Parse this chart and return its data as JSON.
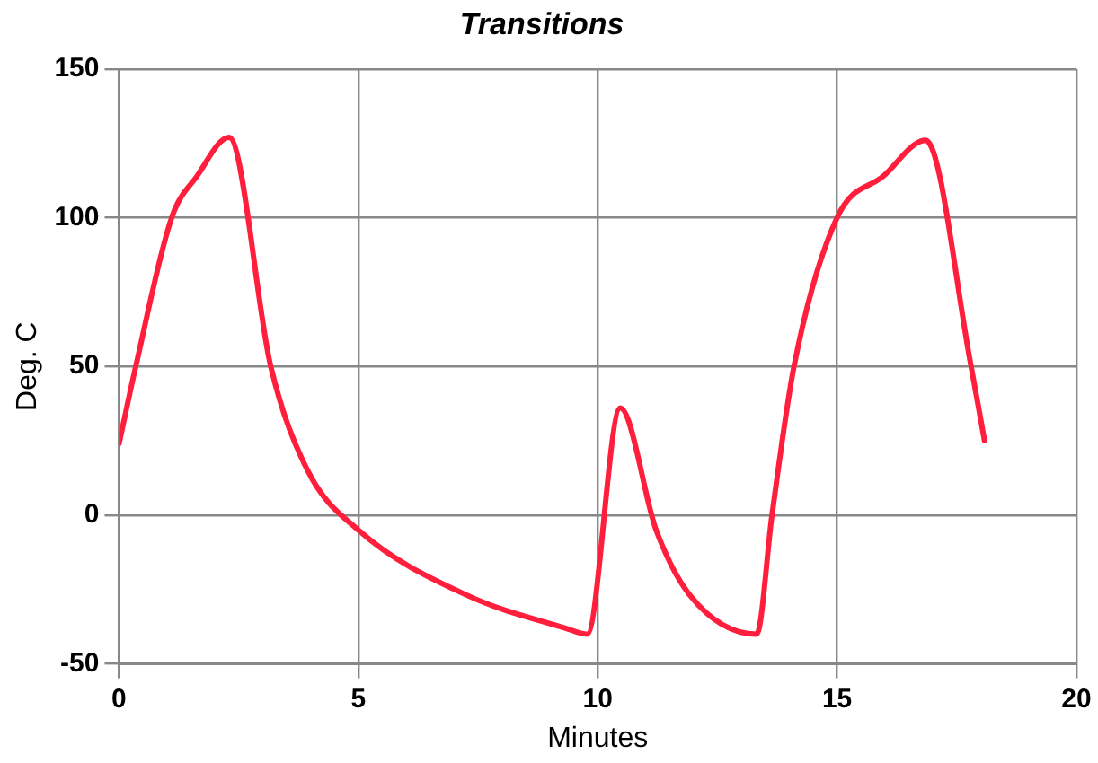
{
  "chart_data": {
    "type": "line",
    "title": "Transitions",
    "xlabel": "Minutes",
    "ylabel": "Deg. C",
    "xlim": [
      0,
      20
    ],
    "xticks": [
      0,
      5,
      10,
      15,
      20
    ],
    "ylim": [
      -50,
      150
    ],
    "yticks": [
      -50,
      0,
      50,
      100,
      150
    ],
    "grid": true,
    "legend": false,
    "marker": "none",
    "line_style": "solid",
    "series": [
      {
        "color": "#ff1f3d",
        "x": [
          0,
          0.35,
          1.1,
          1.63,
          2.3,
          3.17,
          3.94,
          5,
          7.28,
          9.33,
          9.78,
          10.47,
          11.22,
          11.93,
          13.32,
          13.64,
          14.1,
          15,
          15.97,
          16.85,
          17.8,
          18.08
        ],
        "values": [
          24,
          50,
          100,
          114,
          127,
          50,
          15,
          -5,
          -27,
          -38,
          -40,
          36,
          -5,
          -27,
          -40,
          0,
          50,
          100,
          114,
          126,
          50,
          25
        ]
      }
    ]
  }
}
